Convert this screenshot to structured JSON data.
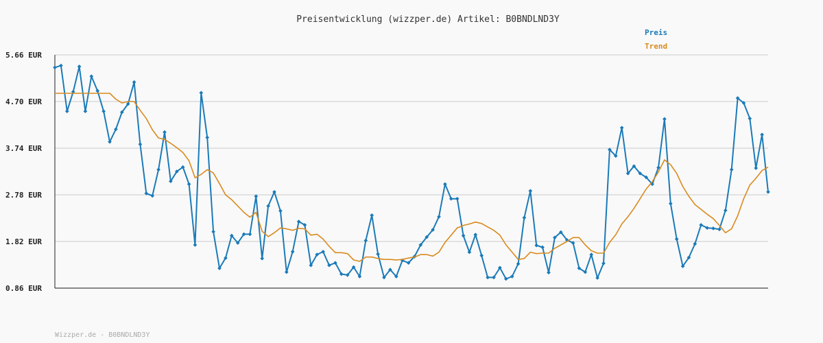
{
  "chart_data": {
    "type": "line",
    "title": "Preisentwicklung (wizzper.de) Artikel: B0BNDLND3Y",
    "footer": "Wizzper.de - B0BNDLND3Y",
    "yunit": "EUR",
    "ylim": [
      0.86,
      5.66
    ],
    "yticks": [
      "5.66 EUR",
      "4.70 EUR",
      "3.74 EUR",
      "2.78 EUR",
      "1.82 EUR",
      "0.86 EUR"
    ],
    "ytick_values": [
      5.66,
      4.7,
      3.74,
      2.78,
      1.82,
      0.86
    ],
    "legend_position": "top-right",
    "grid": true,
    "colors": {
      "preis": "#1a7ab8",
      "trend": "#d98a1e"
    },
    "series": [
      {
        "name": "Preis",
        "values": [
          5.4,
          5.44,
          4.5,
          4.9,
          5.42,
          4.5,
          5.22,
          4.92,
          4.5,
          3.87,
          4.13,
          4.48,
          4.65,
          5.1,
          3.82,
          2.81,
          2.76,
          3.3,
          4.07,
          3.06,
          3.26,
          3.35,
          3.0,
          1.75,
          4.88,
          3.96,
          2.02,
          1.27,
          1.48,
          1.94,
          1.79,
          1.97,
          1.97,
          2.75,
          1.47,
          2.55,
          2.84,
          2.45,
          1.19,
          1.61,
          2.23,
          2.16,
          1.33,
          1.55,
          1.61,
          1.33,
          1.38,
          1.15,
          1.13,
          1.29,
          1.1,
          1.84,
          2.36,
          1.56,
          1.08,
          1.24,
          1.1,
          1.43,
          1.38,
          1.51,
          1.75,
          1.91,
          2.06,
          2.33,
          3.0,
          2.7,
          2.7,
          1.94,
          1.6,
          1.96,
          1.53,
          1.08,
          1.08,
          1.28,
          1.05,
          1.1,
          1.36,
          2.31,
          2.86,
          1.74,
          1.7,
          1.18,
          1.9,
          2.01,
          1.85,
          1.79,
          1.27,
          1.19,
          1.55,
          1.07,
          1.37,
          3.71,
          3.58,
          4.16,
          3.22,
          3.37,
          3.22,
          3.14,
          3.0,
          3.34,
          4.34,
          2.6,
          1.87,
          1.31,
          1.49,
          1.77,
          2.16,
          2.1,
          2.09,
          2.07,
          2.46,
          3.3,
          4.77,
          4.67,
          4.35,
          3.33,
          4.02,
          2.84
        ]
      },
      {
        "name": "Trend",
        "values": [
          4.87,
          4.87,
          4.87,
          4.87,
          4.87,
          4.87,
          4.87,
          4.87,
          4.87,
          4.87,
          4.75,
          4.67,
          4.7,
          4.7,
          4.52,
          4.35,
          4.12,
          3.95,
          3.92,
          3.84,
          3.75,
          3.65,
          3.48,
          3.13,
          3.2,
          3.3,
          3.23,
          3.01,
          2.78,
          2.68,
          2.55,
          2.42,
          2.32,
          2.42,
          2.03,
          1.92,
          2.0,
          2.1,
          2.08,
          2.05,
          2.09,
          2.08,
          1.95,
          1.97,
          1.87,
          1.72,
          1.59,
          1.59,
          1.57,
          1.44,
          1.41,
          1.5,
          1.5,
          1.47,
          1.45,
          1.45,
          1.44,
          1.45,
          1.48,
          1.5,
          1.55,
          1.55,
          1.52,
          1.6,
          1.8,
          1.95,
          2.1,
          2.15,
          2.18,
          2.22,
          2.19,
          2.12,
          2.05,
          1.95,
          1.75,
          1.6,
          1.45,
          1.47,
          1.6,
          1.57,
          1.58,
          1.58,
          1.68,
          1.75,
          1.82,
          1.9,
          1.9,
          1.75,
          1.63,
          1.58,
          1.58,
          1.8,
          1.96,
          2.18,
          2.33,
          2.5,
          2.7,
          2.9,
          3.05,
          3.25,
          3.5,
          3.4,
          3.22,
          2.95,
          2.75,
          2.58,
          2.48,
          2.38,
          2.29,
          2.15,
          2.0,
          2.08,
          2.35,
          2.7,
          2.98,
          3.12,
          3.28,
          3.35
        ]
      }
    ]
  }
}
